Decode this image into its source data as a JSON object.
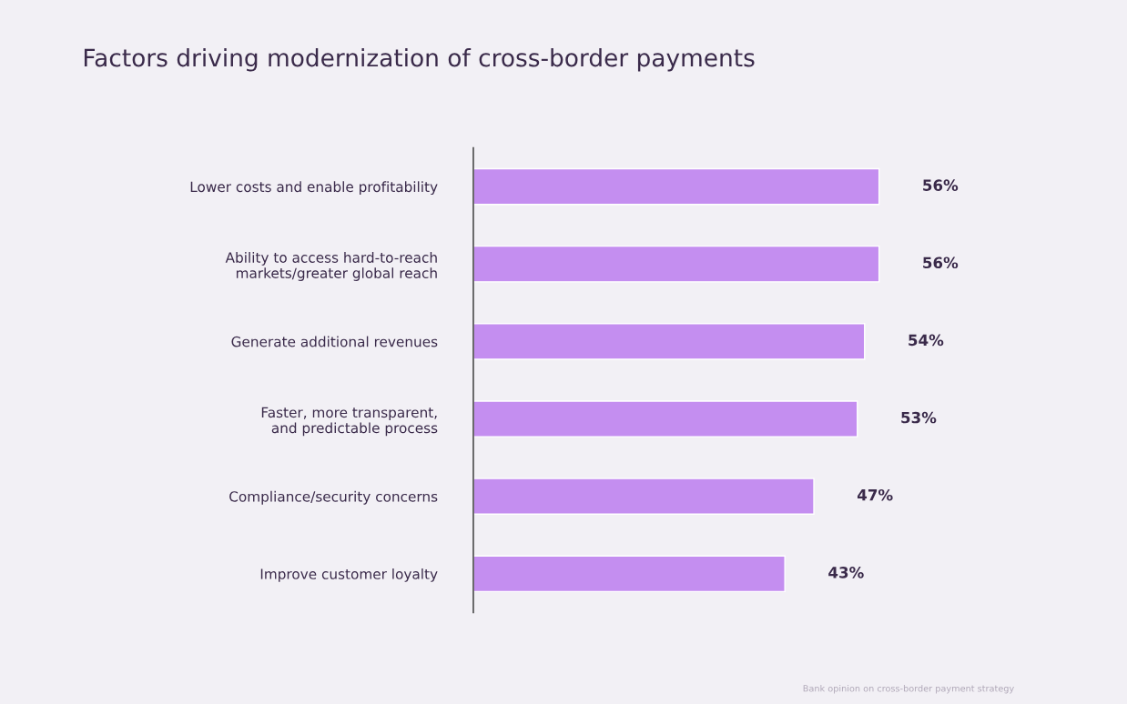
{
  "chart_data": {
    "type": "bar",
    "orientation": "horizontal",
    "title": "Factors driving modernization of cross-border payments",
    "categories": [
      "Lower costs and enable profitability",
      "Ability to access hard-to-reach\nmarkets/greater global reach",
      "Generate additional revenues",
      "Faster, more transparent,\nand predictable process",
      "Compliance/security concerns",
      "Improve customer loyalty"
    ],
    "values": [
      56,
      56,
      54,
      53,
      47,
      43
    ],
    "value_labels": [
      "56%",
      "56%",
      "54%",
      "53%",
      "47%",
      "43%"
    ],
    "color": "#c48ef0",
    "grid": false,
    "legend": false,
    "annotations": [
      "Bank opinion on cross-border payment strategy"
    ]
  }
}
